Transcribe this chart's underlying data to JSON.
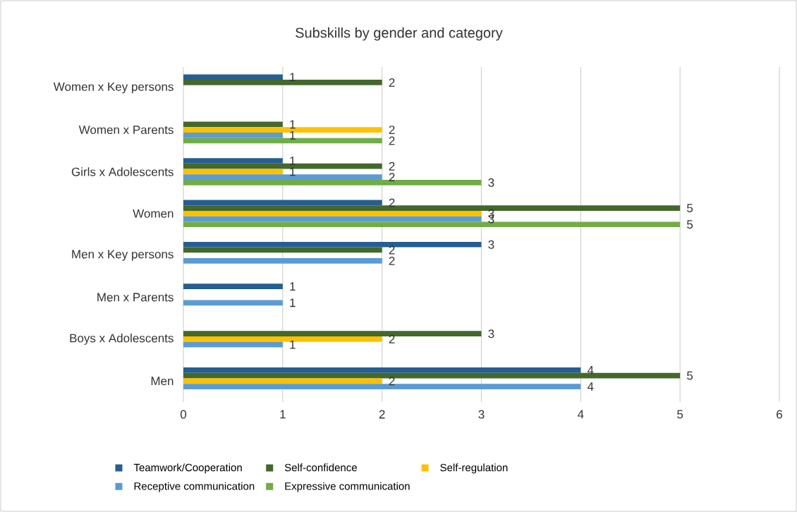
{
  "chart_data": {
    "type": "bar",
    "orientation": "horizontal",
    "title": "Subskills by gender and category",
    "categories": [
      "Women x Key persons",
      "Women x Parents",
      "Girls x Adolescents",
      "Women",
      "Men x Key persons",
      "Men x Parents",
      "Boys x Adolescents",
      "Men"
    ],
    "series": [
      {
        "name": "Teamwork/Cooperation",
        "color": "#255e91",
        "values": [
          1,
          null,
          1,
          2,
          3,
          1,
          null,
          4
        ]
      },
      {
        "name": "Self-confidence",
        "color": "#43682b",
        "values": [
          2,
          1,
          2,
          5,
          2,
          null,
          3,
          5
        ]
      },
      {
        "name": "Self-regulation",
        "color": "#ffc000",
        "values": [
          null,
          2,
          1,
          3,
          null,
          null,
          2,
          2
        ]
      },
      {
        "name": "Receptive communication",
        "color": "#5b9bd5",
        "values": [
          null,
          1,
          2,
          3,
          2,
          1,
          1,
          4
        ]
      },
      {
        "name": "Expressive communication",
        "color": "#70ad47",
        "values": [
          null,
          2,
          3,
          5,
          null,
          null,
          null,
          null
        ]
      }
    ],
    "xlim": [
      0,
      6
    ],
    "xticks": [
      0,
      1,
      2,
      3,
      4,
      5,
      6
    ],
    "grid": "x",
    "legend": "bottom",
    "data_labels": true
  }
}
